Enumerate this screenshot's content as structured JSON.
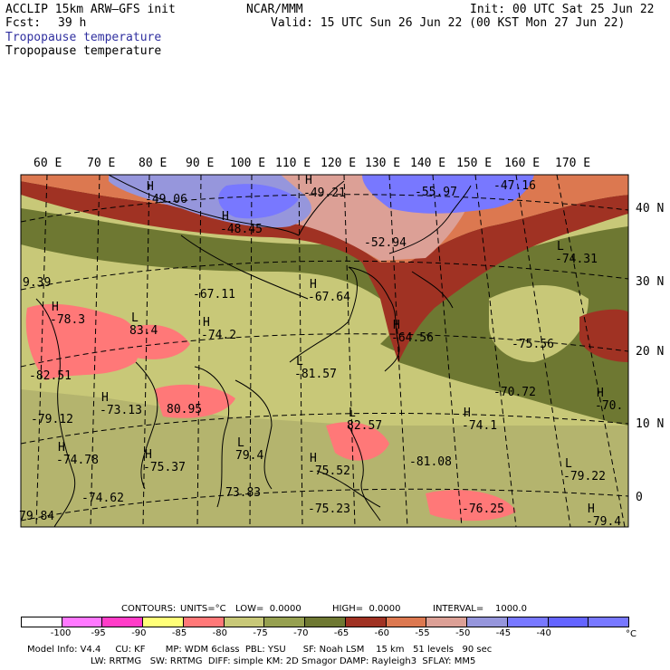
{
  "header": {
    "model": "ACCLIP 15km ARW–GFS init",
    "org": "NCAR/MMM",
    "init": "Init: 00 UTC Sat 25 Jun 22",
    "fcst_label": "Fcst:",
    "fcst_value": "39 h",
    "valid": "Valid: 15 UTC Sun 26 Jun 22 (00 KST Mon 27 Jun 22)",
    "field_1": "Tropopause temperature",
    "field_2": "Tropopause temperature"
  },
  "map": {
    "lon_labels": [
      "60 E",
      "70 E",
      "80 E",
      "90 E",
      "100 E",
      "110 E",
      "120 E",
      "130 E",
      "140 E",
      "150 E",
      "160 E",
      "170 E"
    ],
    "lat_labels": [
      "40 N",
      "30 N",
      "20 N",
      "10 N",
      "0"
    ],
    "extrema": [
      {
        "mark": "H",
        "value": "-49.06"
      },
      {
        "mark": "H",
        "value": "-49.21"
      },
      {
        "mark": "",
        "value": "-55.97"
      },
      {
        "mark": "",
        "value": "-47.16"
      },
      {
        "mark": "H",
        "value": "-48.45"
      },
      {
        "mark": "",
        "value": "-52.94"
      },
      {
        "mark": "L",
        "value": "-74.31"
      },
      {
        "mark": "",
        "value": "9.39"
      },
      {
        "mark": "",
        "value": "-67.11"
      },
      {
        "mark": "H",
        "value": "-67.64"
      },
      {
        "mark": "H",
        "value": "-78.3"
      },
      {
        "mark": "L",
        "value": "83.4"
      },
      {
        "mark": "H",
        "value": "-74.2"
      },
      {
        "mark": "H",
        "value": "-64.56"
      },
      {
        "mark": "",
        "value": "-75.56"
      },
      {
        "mark": "",
        "value": "-82.51"
      },
      {
        "mark": "L",
        "value": "-81.57"
      },
      {
        "mark": "",
        "value": "-70.72"
      },
      {
        "mark": "",
        "value": "-79.12"
      },
      {
        "mark": "H",
        "value": "-73.13"
      },
      {
        "mark": "",
        "value": "80.95"
      },
      {
        "mark": "H",
        "value": "-70."
      },
      {
        "mark": "L",
        "value": "82.57"
      },
      {
        "mark": "H",
        "value": "-74.1"
      },
      {
        "mark": "H",
        "value": "-74.78"
      },
      {
        "mark": "H",
        "value": "-75.37"
      },
      {
        "mark": "L",
        "value": "79.4"
      },
      {
        "mark": "H",
        "value": "-75.52"
      },
      {
        "mark": "",
        "value": "-81.08"
      },
      {
        "mark": "L",
        "value": "-79.22"
      },
      {
        "mark": "",
        "value": "79.84"
      },
      {
        "mark": "",
        "value": "-74.62"
      },
      {
        "mark": "",
        "value": "73.83"
      },
      {
        "mark": "",
        "value": "-75.23"
      },
      {
        "mark": "",
        "value": "-76.25"
      },
      {
        "mark": "H",
        "value": "-79.4"
      }
    ]
  },
  "contours": {
    "label": "CONTOURS:",
    "units": "UNITS=°C",
    "low": "LOW=  0.0000",
    "high": "HIGH=  0.0000",
    "interval": "INTERVAL=    1000.0"
  },
  "colorbar": {
    "colors": [
      "#ffffff",
      "#ff78ff",
      "#ff3cc8",
      "#ffff78",
      "#ff7878",
      "#c8c878",
      "#96a050",
      "#6e7832",
      "#a03223",
      "#dc7850",
      "#dca096",
      "#9696dc",
      "#7878ff",
      "#6464ff",
      "#7878ff"
    ],
    "ticks": [
      "-100",
      "-95",
      "-90",
      "-85",
      "-80",
      "-75",
      "-70",
      "-65",
      "-60",
      "-55",
      "-50",
      "-45",
      "-40"
    ],
    "unit": "°C"
  },
  "footer": {
    "line1": "Model Info: V4.4     CU: KF       MP: WDM 6class  PBL: YSU      SF: Noah LSM    15 km   51 levels   90 sec",
    "line2": "LW: RRTMG   SW: RRTMG  DIFF: simple KM: 2D Smagor DAMP: Rayleigh3  SFLAY: MM5"
  }
}
